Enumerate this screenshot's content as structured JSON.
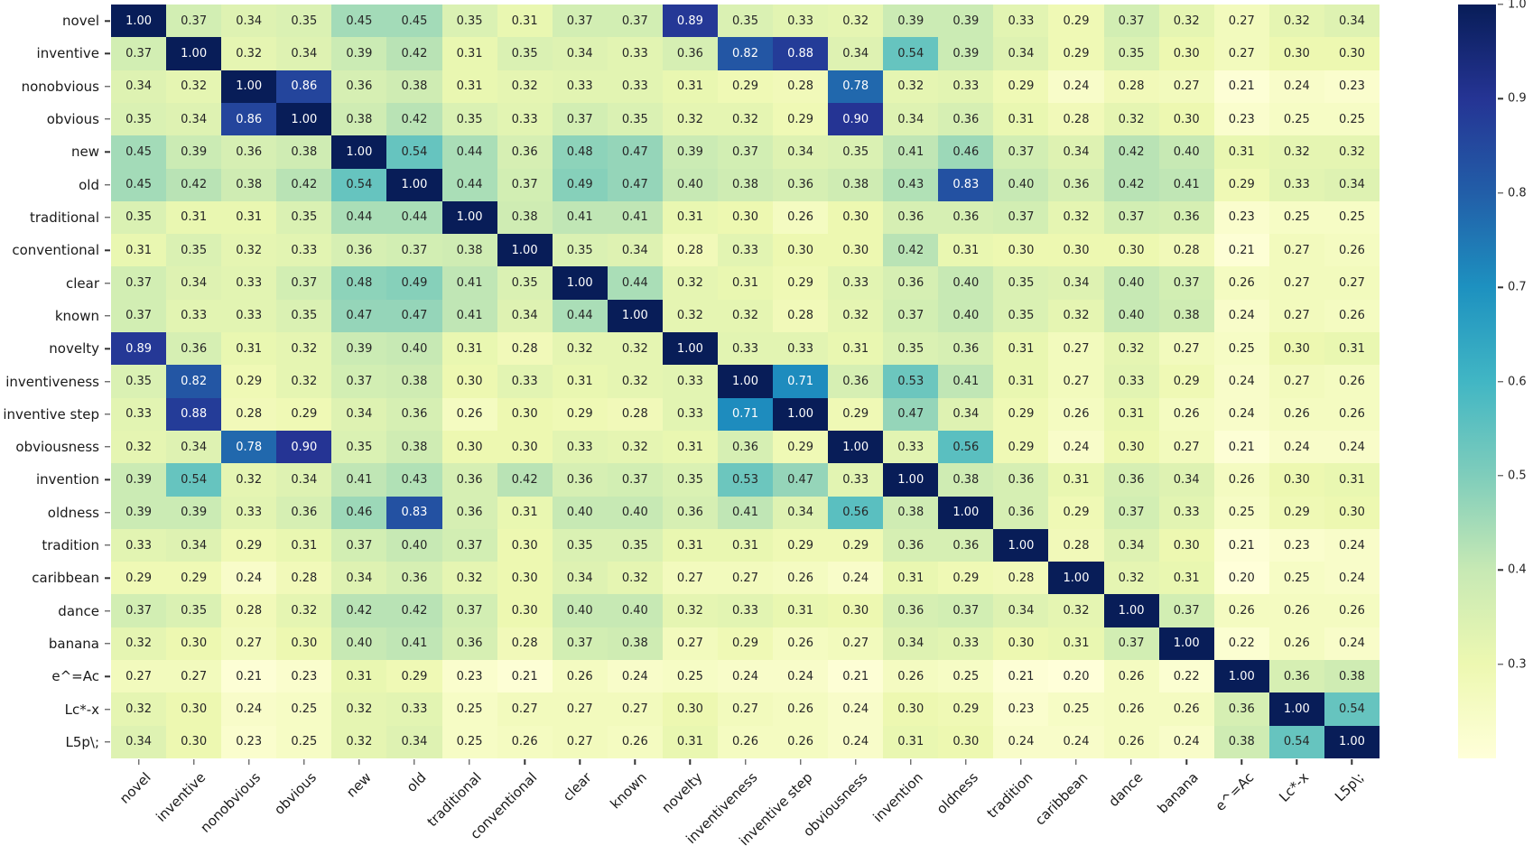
{
  "chart_data": {
    "type": "heatmap",
    "title": "",
    "labels": [
      "novel",
      "inventive",
      "nonobvious",
      "obvious",
      "new",
      "old",
      "traditional",
      "conventional",
      "clear",
      "known",
      "novelty",
      "inventiveness",
      "inventive step",
      "obviousness",
      "invention",
      "oldness",
      "tradition",
      "caribbean",
      "dance",
      "banana",
      "e^=Ac",
      "Lc*-x",
      "L5p\\;"
    ],
    "matrix": [
      [
        1.0,
        0.37,
        0.34,
        0.35,
        0.45,
        0.45,
        0.35,
        0.31,
        0.37,
        0.37,
        0.89,
        0.35,
        0.33,
        0.32,
        0.39,
        0.39,
        0.33,
        0.29,
        0.37,
        0.32,
        0.27,
        0.32,
        0.34
      ],
      [
        0.37,
        1.0,
        0.32,
        0.34,
        0.39,
        0.42,
        0.31,
        0.35,
        0.34,
        0.33,
        0.36,
        0.82,
        0.88,
        0.34,
        0.54,
        0.39,
        0.34,
        0.29,
        0.35,
        0.3,
        0.27,
        0.3,
        0.3
      ],
      [
        0.34,
        0.32,
        1.0,
        0.86,
        0.36,
        0.38,
        0.31,
        0.32,
        0.33,
        0.33,
        0.31,
        0.29,
        0.28,
        0.78,
        0.32,
        0.33,
        0.29,
        0.24,
        0.28,
        0.27,
        0.21,
        0.24,
        0.23
      ],
      [
        0.35,
        0.34,
        0.86,
        1.0,
        0.38,
        0.42,
        0.35,
        0.33,
        0.37,
        0.35,
        0.32,
        0.32,
        0.29,
        0.9,
        0.34,
        0.36,
        0.31,
        0.28,
        0.32,
        0.3,
        0.23,
        0.25,
        0.25
      ],
      [
        0.45,
        0.39,
        0.36,
        0.38,
        1.0,
        0.54,
        0.44,
        0.36,
        0.48,
        0.47,
        0.39,
        0.37,
        0.34,
        0.35,
        0.41,
        0.46,
        0.37,
        0.34,
        0.42,
        0.4,
        0.31,
        0.32,
        0.32
      ],
      [
        0.45,
        0.42,
        0.38,
        0.42,
        0.54,
        1.0,
        0.44,
        0.37,
        0.49,
        0.47,
        0.4,
        0.38,
        0.36,
        0.38,
        0.43,
        0.83,
        0.4,
        0.36,
        0.42,
        0.41,
        0.29,
        0.33,
        0.34
      ],
      [
        0.35,
        0.31,
        0.31,
        0.35,
        0.44,
        0.44,
        1.0,
        0.38,
        0.41,
        0.41,
        0.31,
        0.3,
        0.26,
        0.3,
        0.36,
        0.36,
        0.37,
        0.32,
        0.37,
        0.36,
        0.23,
        0.25,
        0.25
      ],
      [
        0.31,
        0.35,
        0.32,
        0.33,
        0.36,
        0.37,
        0.38,
        1.0,
        0.35,
        0.34,
        0.28,
        0.33,
        0.3,
        0.3,
        0.42,
        0.31,
        0.3,
        0.3,
        0.3,
        0.28,
        0.21,
        0.27,
        0.26
      ],
      [
        0.37,
        0.34,
        0.33,
        0.37,
        0.48,
        0.49,
        0.41,
        0.35,
        1.0,
        0.44,
        0.32,
        0.31,
        0.29,
        0.33,
        0.36,
        0.4,
        0.35,
        0.34,
        0.4,
        0.37,
        0.26,
        0.27,
        0.27
      ],
      [
        0.37,
        0.33,
        0.33,
        0.35,
        0.47,
        0.47,
        0.41,
        0.34,
        0.44,
        1.0,
        0.32,
        0.32,
        0.28,
        0.32,
        0.37,
        0.4,
        0.35,
        0.32,
        0.4,
        0.38,
        0.24,
        0.27,
        0.26
      ],
      [
        0.89,
        0.36,
        0.31,
        0.32,
        0.39,
        0.4,
        0.31,
        0.28,
        0.32,
        0.32,
        1.0,
        0.33,
        0.33,
        0.31,
        0.35,
        0.36,
        0.31,
        0.27,
        0.32,
        0.27,
        0.25,
        0.3,
        0.31
      ],
      [
        0.35,
        0.82,
        0.29,
        0.32,
        0.37,
        0.38,
        0.3,
        0.33,
        0.31,
        0.32,
        0.33,
        1.0,
        0.71,
        0.36,
        0.53,
        0.41,
        0.31,
        0.27,
        0.33,
        0.29,
        0.24,
        0.27,
        0.26
      ],
      [
        0.33,
        0.88,
        0.28,
        0.29,
        0.34,
        0.36,
        0.26,
        0.3,
        0.29,
        0.28,
        0.33,
        0.71,
        1.0,
        0.29,
        0.47,
        0.34,
        0.29,
        0.26,
        0.31,
        0.26,
        0.24,
        0.26,
        0.26
      ],
      [
        0.32,
        0.34,
        0.78,
        0.9,
        0.35,
        0.38,
        0.3,
        0.3,
        0.33,
        0.32,
        0.31,
        0.36,
        0.29,
        1.0,
        0.33,
        0.56,
        0.29,
        0.24,
        0.3,
        0.27,
        0.21,
        0.24,
        0.24
      ],
      [
        0.39,
        0.54,
        0.32,
        0.34,
        0.41,
        0.43,
        0.36,
        0.42,
        0.36,
        0.37,
        0.35,
        0.53,
        0.47,
        0.33,
        1.0,
        0.38,
        0.36,
        0.31,
        0.36,
        0.34,
        0.26,
        0.3,
        0.31
      ],
      [
        0.39,
        0.39,
        0.33,
        0.36,
        0.46,
        0.83,
        0.36,
        0.31,
        0.4,
        0.4,
        0.36,
        0.41,
        0.34,
        0.56,
        0.38,
        1.0,
        0.36,
        0.29,
        0.37,
        0.33,
        0.25,
        0.29,
        0.3
      ],
      [
        0.33,
        0.34,
        0.29,
        0.31,
        0.37,
        0.4,
        0.37,
        0.3,
        0.35,
        0.35,
        0.31,
        0.31,
        0.29,
        0.29,
        0.36,
        0.36,
        1.0,
        0.28,
        0.34,
        0.3,
        0.21,
        0.23,
        0.24
      ],
      [
        0.29,
        0.29,
        0.24,
        0.28,
        0.34,
        0.36,
        0.32,
        0.3,
        0.34,
        0.32,
        0.27,
        0.27,
        0.26,
        0.24,
        0.31,
        0.29,
        0.28,
        1.0,
        0.32,
        0.31,
        0.2,
        0.25,
        0.24
      ],
      [
        0.37,
        0.35,
        0.28,
        0.32,
        0.42,
        0.42,
        0.37,
        0.3,
        0.4,
        0.4,
        0.32,
        0.33,
        0.31,
        0.3,
        0.36,
        0.37,
        0.34,
        0.32,
        1.0,
        0.37,
        0.26,
        0.26,
        0.26
      ],
      [
        0.32,
        0.3,
        0.27,
        0.3,
        0.4,
        0.41,
        0.36,
        0.28,
        0.37,
        0.38,
        0.27,
        0.29,
        0.26,
        0.27,
        0.34,
        0.33,
        0.3,
        0.31,
        0.37,
        1.0,
        0.22,
        0.26,
        0.24
      ],
      [
        0.27,
        0.27,
        0.21,
        0.23,
        0.31,
        0.29,
        0.23,
        0.21,
        0.26,
        0.24,
        0.25,
        0.24,
        0.24,
        0.21,
        0.26,
        0.25,
        0.21,
        0.2,
        0.26,
        0.22,
        1.0,
        0.36,
        0.38
      ],
      [
        0.32,
        0.3,
        0.24,
        0.25,
        0.32,
        0.33,
        0.25,
        0.27,
        0.27,
        0.27,
        0.3,
        0.27,
        0.26,
        0.24,
        0.3,
        0.29,
        0.23,
        0.25,
        0.26,
        0.26,
        0.36,
        1.0,
        0.54
      ],
      [
        0.34,
        0.3,
        0.23,
        0.25,
        0.32,
        0.34,
        0.25,
        0.26,
        0.27,
        0.26,
        0.31,
        0.26,
        0.26,
        0.24,
        0.31,
        0.3,
        0.24,
        0.24,
        0.26,
        0.24,
        0.38,
        0.54,
        1.0
      ]
    ],
    "value_format": "0.00",
    "colormap": {
      "name": "YlGnBu",
      "stops": [
        "#ffffd9",
        "#edf8b1",
        "#c7e9b4",
        "#7fcdbb",
        "#41b6c4",
        "#1d91c0",
        "#225ea8",
        "#253494",
        "#081d58"
      ]
    },
    "vmin": 0.2,
    "vmax": 1.0,
    "grid": false,
    "legend_position": "colorbar-right",
    "colorbar_ticks": [
      "1.0",
      "0.9",
      "0.8",
      "0.7",
      "0.6",
      "0.5",
      "0.4",
      "0.3"
    ],
    "colorbar_tick_values": [
      1.0,
      0.9,
      0.8,
      0.7,
      0.6,
      0.5,
      0.4,
      0.3
    ],
    "annotation_text_colors": {
      "dark": "#262626",
      "light": "#ffffff"
    }
  }
}
